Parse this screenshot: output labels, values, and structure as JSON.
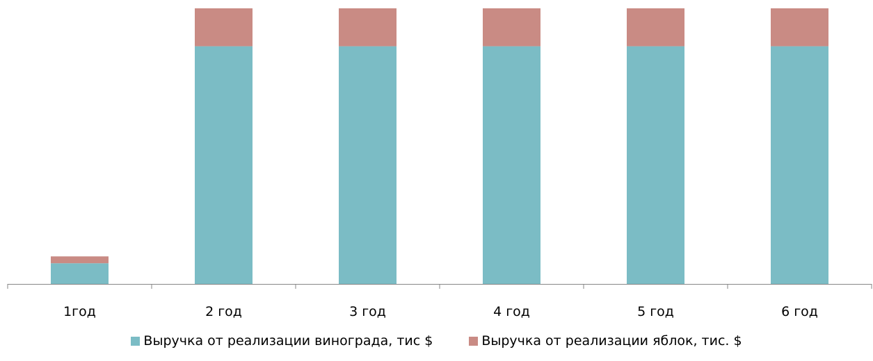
{
  "chart_data": {
    "type": "bar",
    "stacked": true,
    "categories": [
      "1год",
      "2 год",
      "3 год",
      "4 год",
      "5 год",
      "6 год"
    ],
    "series": [
      {
        "name": "Выручка от реализации винограда, тис $",
        "color": "#7bbcc5",
        "values": [
          30,
          345,
          345,
          345,
          345,
          345
        ]
      },
      {
        "name": "Выручка от реализации яблок, тис. $",
        "color": "#c98b84",
        "values": [
          10,
          55,
          55,
          55,
          55,
          55
        ]
      }
    ],
    "ylim": [
      0,
      400
    ],
    "grid": false,
    "legend_position": "bottom"
  }
}
